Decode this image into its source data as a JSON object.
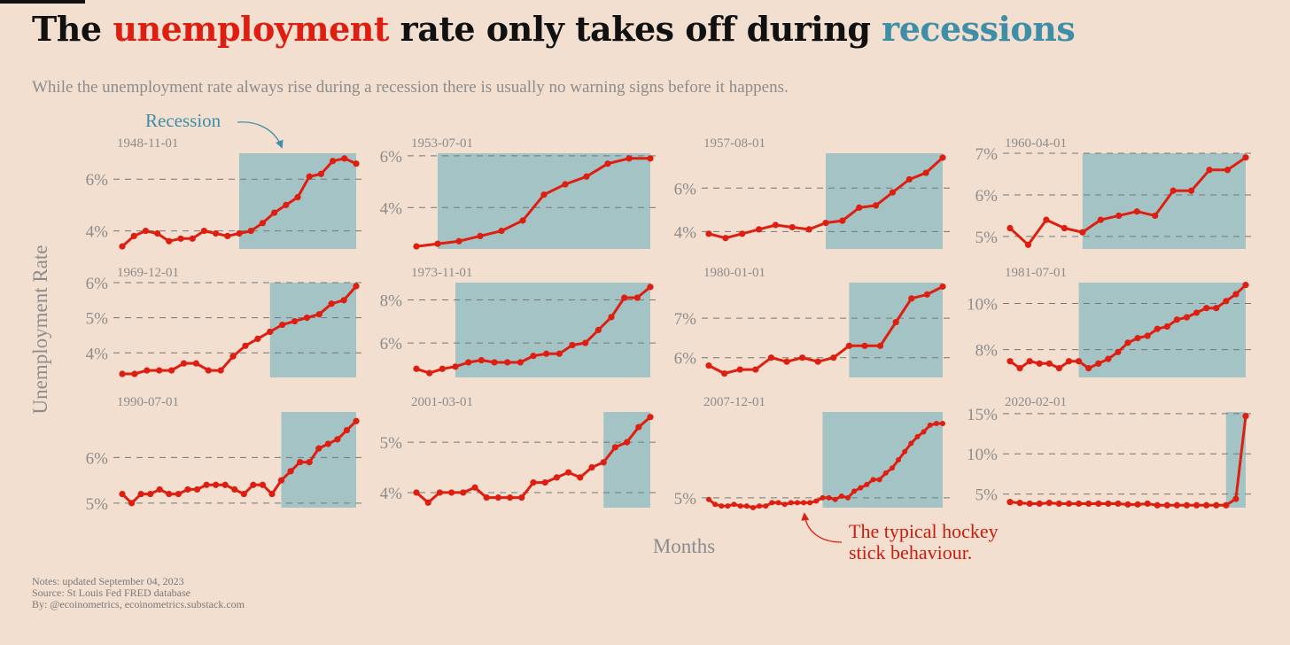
{
  "title": {
    "prefix": "The ",
    "highlight1": "unemployment",
    "middle": " rate only takes off during ",
    "highlight2": "recessions"
  },
  "subtitle": "While the unemployment rate always rise during a recession there is usually no warning signs before it happens.",
  "annotations": {
    "recession": "Recession",
    "hockey_line1": "The typical hockey",
    "hockey_line2": "stick behaviour."
  },
  "notes": {
    "line1": "Notes: updated September 04, 2023",
    "line2": "Source: St Louis Fed FRED database",
    "line3": "By: @ecoinometrics, ecoinometrics.substack.com"
  },
  "colors": {
    "title_red": "#dd1e10",
    "title_blue": "#3e8ea8",
    "line": "#dd1e10",
    "recession_band": "#a4c3c5",
    "grid": "#777777",
    "background": "#f2dfd0"
  },
  "chart_data": {
    "type": "line",
    "xlabel": "Months",
    "ylabel": "Unemployment Rate",
    "grid": "horizontal dashed",
    "panels": [
      {
        "label": "1948-11-01",
        "recession_start": 10,
        "yticks": [
          4,
          6
        ],
        "ylim": [
          3.3,
          7.0
        ],
        "values": [
          3.4,
          3.8,
          4.0,
          3.9,
          3.6,
          3.7,
          3.7,
          4.0,
          3.9,
          3.8,
          3.9,
          4.0,
          4.3,
          4.7,
          5.0,
          5.3,
          6.1,
          6.2,
          6.7,
          6.8,
          6.6
        ]
      },
      {
        "label": "1953-07-01",
        "recession_start": 1,
        "yticks": [
          4,
          6
        ],
        "ylim": [
          2.4,
          6.1
        ],
        "values": [
          2.5,
          2.6,
          2.7,
          2.9,
          3.1,
          3.5,
          4.5,
          4.9,
          5.2,
          5.7,
          5.9,
          5.9
        ]
      },
      {
        "label": "1957-08-01",
        "recession_start": 7,
        "yticks": [
          4,
          6
        ],
        "ylim": [
          3.2,
          7.6
        ],
        "values": [
          3.9,
          3.7,
          3.9,
          4.1,
          4.3,
          4.2,
          4.1,
          4.4,
          4.5,
          5.1,
          5.2,
          5.8,
          6.4,
          6.7,
          7.4
        ]
      },
      {
        "label": "1960-04-01",
        "recession_start": 4,
        "yticks": [
          5,
          6,
          7
        ],
        "ylim": [
          4.7,
          7.0
        ],
        "values": [
          5.2,
          4.8,
          5.4,
          5.2,
          5.1,
          5.4,
          5.5,
          5.6,
          5.5,
          6.1,
          6.1,
          6.6,
          6.6,
          6.9
        ]
      },
      {
        "label": "1969-12-01",
        "recession_start": 12,
        "yticks": [
          4,
          5,
          6
        ],
        "ylim": [
          3.3,
          6.0
        ],
        "values": [
          3.4,
          3.4,
          3.5,
          3.5,
          3.5,
          3.7,
          3.7,
          3.5,
          3.5,
          3.9,
          4.2,
          4.4,
          4.6,
          4.8,
          4.9,
          5.0,
          5.1,
          5.4,
          5.5,
          5.9
        ]
      },
      {
        "label": "1973-11-01",
        "recession_start": 3,
        "yticks": [
          6,
          8
        ],
        "ylim": [
          4.4,
          8.8
        ],
        "values": [
          4.8,
          4.6,
          4.8,
          4.9,
          5.1,
          5.2,
          5.1,
          5.1,
          5.1,
          5.4,
          5.5,
          5.5,
          5.9,
          6.0,
          6.6,
          7.2,
          8.1,
          8.1,
          8.6
        ]
      },
      {
        "label": "1980-01-01",
        "recession_start": 9,
        "yticks": [
          6,
          7
        ],
        "ylim": [
          5.5,
          7.9
        ],
        "values": [
          5.8,
          5.6,
          5.7,
          5.7,
          6.0,
          5.9,
          6.0,
          5.9,
          6.0,
          6.3,
          6.3,
          6.3,
          6.9,
          7.5,
          7.6,
          7.8
        ]
      },
      {
        "label": "1981-07-01",
        "recession_start": 7,
        "yticks": [
          8,
          10
        ],
        "ylim": [
          6.8,
          10.9
        ],
        "values": [
          7.5,
          7.2,
          7.5,
          7.4,
          7.4,
          7.2,
          7.5,
          7.5,
          7.2,
          7.4,
          7.6,
          7.9,
          8.3,
          8.5,
          8.6,
          8.9,
          9.0,
          9.3,
          9.4,
          9.6,
          9.8,
          9.8,
          10.1,
          10.4,
          10.8
        ]
      },
      {
        "label": "1990-07-01",
        "recession_start": 17,
        "yticks": [
          5,
          6
        ],
        "ylim": [
          4.9,
          7.0
        ],
        "values": [
          5.2,
          5.0,
          5.2,
          5.2,
          5.3,
          5.2,
          5.2,
          5.3,
          5.3,
          5.4,
          5.4,
          5.4,
          5.3,
          5.2,
          5.4,
          5.4,
          5.2,
          5.5,
          5.7,
          5.9,
          5.9,
          6.2,
          6.3,
          6.4,
          6.6,
          6.8
        ]
      },
      {
        "label": "2001-03-01",
        "recession_start": 16,
        "yticks": [
          4,
          5
        ],
        "ylim": [
          3.7,
          5.6
        ],
        "values": [
          4.0,
          3.8,
          4.0,
          4.0,
          4.0,
          4.1,
          3.9,
          3.9,
          3.9,
          3.9,
          4.2,
          4.2,
          4.3,
          4.4,
          4.3,
          4.5,
          4.6,
          4.9,
          5.0,
          5.3,
          5.5
        ]
      },
      {
        "label": "2007-12-01",
        "recession_start": 18,
        "yticks": [
          5
        ],
        "ylim": [
          4.4,
          10.2
        ],
        "values": [
          4.9,
          4.6,
          4.5,
          4.5,
          4.6,
          4.5,
          4.5,
          4.4,
          4.5,
          4.5,
          4.7,
          4.7,
          4.6,
          4.7,
          4.7,
          4.7,
          4.7,
          4.8,
          5.0,
          5.0,
          4.9,
          5.1,
          5.0,
          5.4,
          5.6,
          5.8,
          6.1,
          6.1,
          6.5,
          6.8,
          7.3,
          7.8,
          8.3,
          8.7,
          9.0,
          9.4,
          9.5,
          9.5
        ]
      },
      {
        "label": "2020-02-01",
        "recession_start": 22,
        "yticks": [
          5,
          10,
          15
        ],
        "ylim": [
          3.3,
          15.2
        ],
        "values": [
          4.0,
          3.9,
          3.8,
          3.8,
          3.9,
          3.8,
          3.8,
          3.8,
          3.8,
          3.8,
          3.8,
          3.8,
          3.7,
          3.7,
          3.8,
          3.6,
          3.6,
          3.6,
          3.6,
          3.6,
          3.6,
          3.6,
          3.6,
          4.4,
          14.7
        ]
      }
    ]
  }
}
